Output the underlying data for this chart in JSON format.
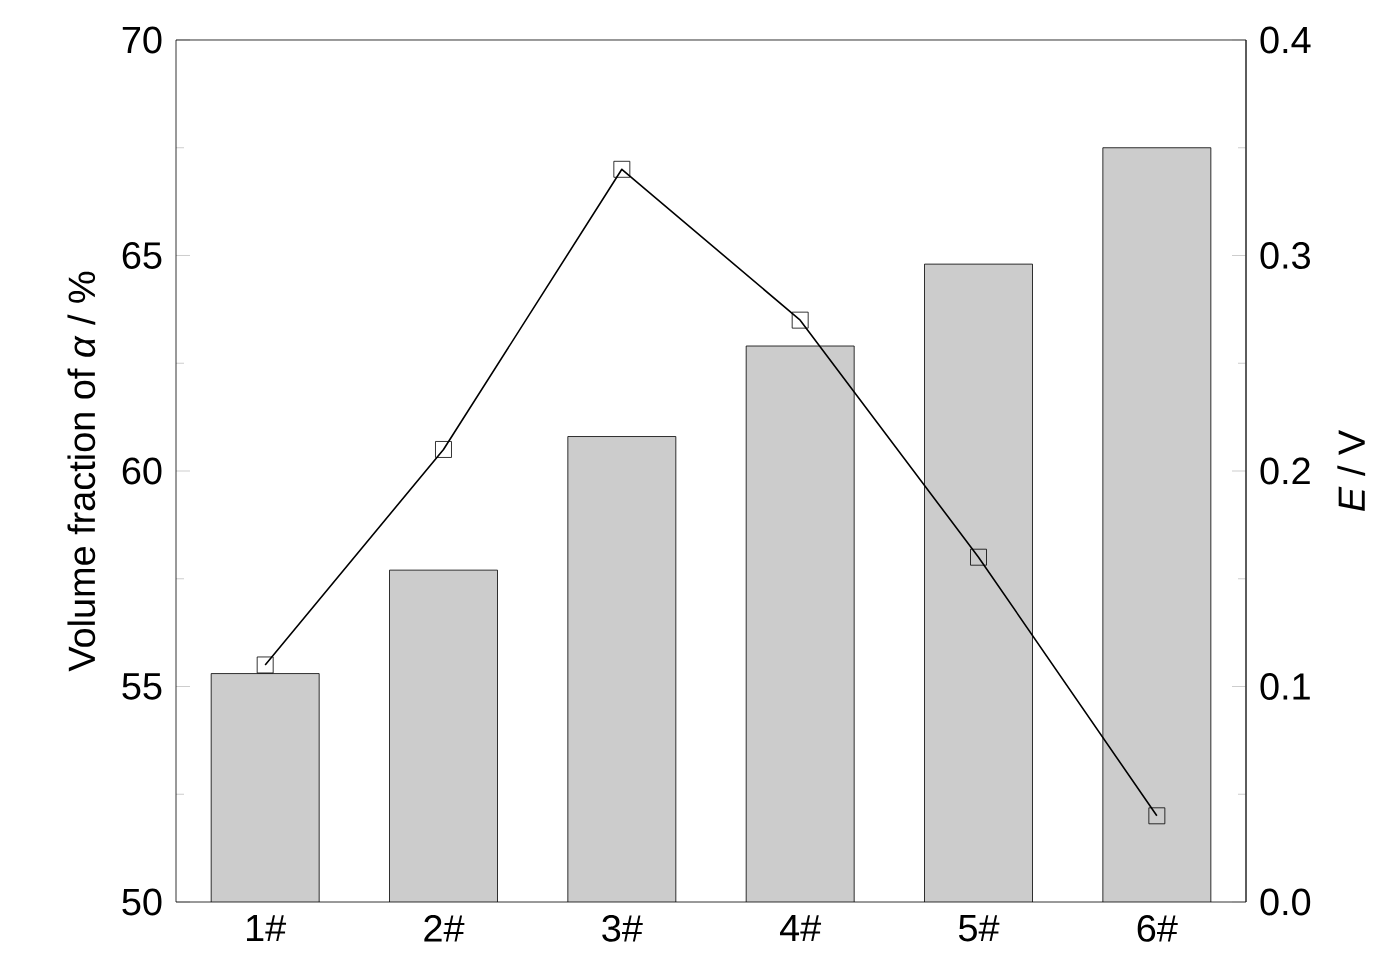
{
  "chart_data": {
    "type": "bar",
    "categories": [
      "1#",
      "2#",
      "3#",
      "4#",
      "5#",
      "6#"
    ],
    "series": [
      {
        "color": "#cccccc",
        "values": [
          55.3,
          57.7,
          60.8,
          62.9,
          64.8,
          67.5
        ]
      },
      {
        "type": "line",
        "axis": "y2",
        "color": "#000000",
        "values": [
          0.11,
          0.21,
          0.34,
          0.27,
          0.16,
          0.04
        ]
      }
    ],
    "ylabel": "Volume fraction of *α* / %",
    "y2label": "*E* / V",
    "ylim": [
      50,
      70
    ],
    "yticks": [
      50,
      55,
      60,
      65,
      70
    ],
    "y2lim": [
      0,
      0.4
    ],
    "y2ticks": [
      {
        "value": 0,
        "label": "0.0"
      },
      {
        "value": 0.1,
        "label": "0.1"
      },
      {
        "value": 0.2,
        "label": "0.2"
      },
      {
        "value": 0.3,
        "label": "0.3"
      },
      {
        "value": 0.4,
        "label": "0.4"
      }
    ],
    "marker": "square"
  }
}
